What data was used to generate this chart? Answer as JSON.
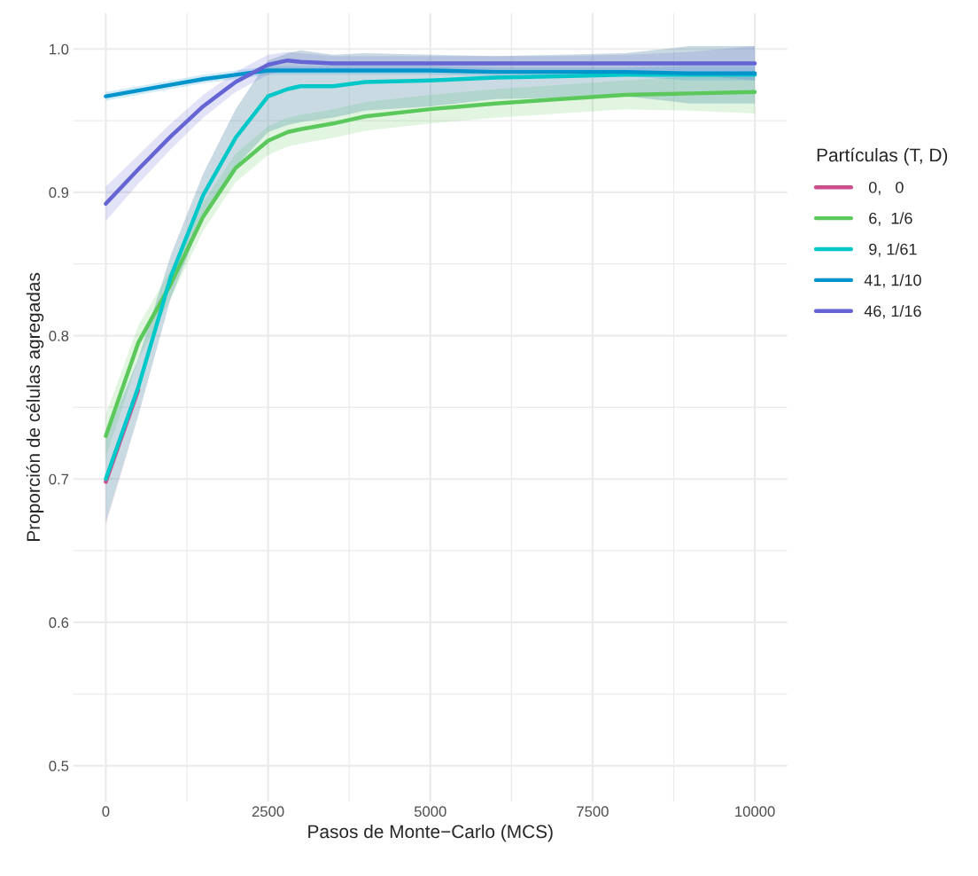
{
  "chart_data": {
    "type": "line",
    "xlabel": "Pasos de Monte−Carlo (MCS)",
    "ylabel": "Proporción de células agregadas",
    "legend_title": "Partículas (T, D)",
    "x": [
      0,
      500,
      1000,
      1500,
      2000,
      2500,
      2800,
      3000,
      3500,
      4000,
      5000,
      6000,
      7000,
      8000,
      9000,
      10000
    ],
    "series": [
      {
        "name": " 0,   0",
        "color": "#cc4c8c",
        "values": [
          0.698,
          0.762,
          null,
          null,
          null,
          null,
          null,
          null,
          null,
          null,
          null,
          null,
          null,
          null,
          null,
          null
        ],
        "lower": [
          0.668,
          0.744,
          0.826,
          0.883,
          0.918,
          0.942,
          0.947,
          0.949,
          0.952,
          0.957,
          0.96,
          0.965,
          0.966,
          0.967,
          0.962,
          0.962
        ],
        "upper": [
          0.728,
          0.784,
          0.856,
          0.913,
          0.958,
          0.992,
          0.997,
          0.999,
          0.996,
          0.997,
          0.996,
          0.995,
          0.996,
          0.997,
          1.002,
          1.002
        ]
      },
      {
        "name": " 6,  1/6",
        "color": "#5ac85a",
        "values": [
          0.73,
          0.795,
          0.836,
          0.883,
          0.917,
          0.936,
          0.942,
          0.944,
          0.948,
          0.953,
          0.958,
          0.962,
          0.965,
          0.968,
          0.969,
          0.97
        ],
        "lower": [
          0.715,
          0.783,
          0.826,
          0.873,
          0.907,
          0.926,
          0.932,
          0.934,
          0.938,
          0.943,
          0.948,
          0.952,
          0.955,
          0.958,
          0.957,
          0.955
        ],
        "upper": [
          0.745,
          0.807,
          0.846,
          0.893,
          0.927,
          0.946,
          0.952,
          0.954,
          0.958,
          0.963,
          0.968,
          0.972,
          0.975,
          0.978,
          0.981,
          0.985
        ]
      },
      {
        "name": " 9, 1/61",
        "color": "#00c8c8",
        "values": [
          0.7,
          0.764,
          0.841,
          0.898,
          0.938,
          0.967,
          0.972,
          0.974,
          0.974,
          0.977,
          0.978,
          0.98,
          0.981,
          0.982,
          0.982,
          0.982
        ],
        "lower": [
          0.67,
          0.744,
          0.826,
          0.883,
          0.918,
          0.942,
          0.947,
          0.949,
          0.952,
          0.957,
          0.96,
          0.965,
          0.966,
          0.967,
          0.962,
          0.962
        ],
        "upper": [
          0.73,
          0.784,
          0.856,
          0.913,
          0.958,
          0.992,
          0.997,
          0.999,
          0.996,
          0.997,
          0.996,
          0.995,
          0.996,
          0.997,
          1.002,
          1.002
        ]
      },
      {
        "name": "41, 1/10",
        "color": "#0094cc",
        "values": [
          0.967,
          0.971,
          0.975,
          0.979,
          0.982,
          0.985,
          0.985,
          0.985,
          0.985,
          0.985,
          0.985,
          0.984,
          0.984,
          0.984,
          0.983,
          0.983
        ],
        "lower": [
          0.964,
          0.968,
          0.972,
          0.976,
          0.979,
          0.982,
          0.982,
          0.982,
          0.982,
          0.982,
          0.982,
          0.981,
          0.981,
          0.981,
          0.978,
          0.978
        ],
        "upper": [
          0.97,
          0.974,
          0.978,
          0.982,
          0.985,
          0.988,
          0.988,
          0.988,
          0.988,
          0.988,
          0.988,
          0.987,
          0.987,
          0.987,
          0.988,
          0.988
        ]
      },
      {
        "name": "46, 1/16",
        "color": "#6464d4",
        "values": [
          0.892,
          0.916,
          0.939,
          0.96,
          0.977,
          0.989,
          0.992,
          0.991,
          0.99,
          0.99,
          0.99,
          0.99,
          0.99,
          0.99,
          0.99,
          0.99
        ],
        "lower": [
          0.88,
          0.906,
          0.93,
          0.952,
          0.97,
          0.982,
          0.986,
          0.985,
          0.985,
          0.985,
          0.985,
          0.985,
          0.985,
          0.984,
          0.982,
          0.978
        ],
        "upper": [
          0.904,
          0.926,
          0.948,
          0.968,
          0.984,
          0.996,
          0.998,
          0.997,
          0.995,
          0.995,
          0.995,
          0.995,
          0.995,
          0.996,
          0.998,
          1.002
        ]
      }
    ],
    "xlim": [
      -500,
      10500
    ],
    "xticks": [
      0,
      2500,
      5000,
      7500,
      10000
    ],
    "ylim": [
      0.475,
      1.025
    ],
    "yticks": [
      0.5,
      0.6,
      0.7,
      0.8,
      0.9,
      {
        "value": 1,
        "label": "1.0"
      }
    ],
    "grid": true,
    "legend": "right",
    "line_style": "solid",
    "marker": "none"
  }
}
